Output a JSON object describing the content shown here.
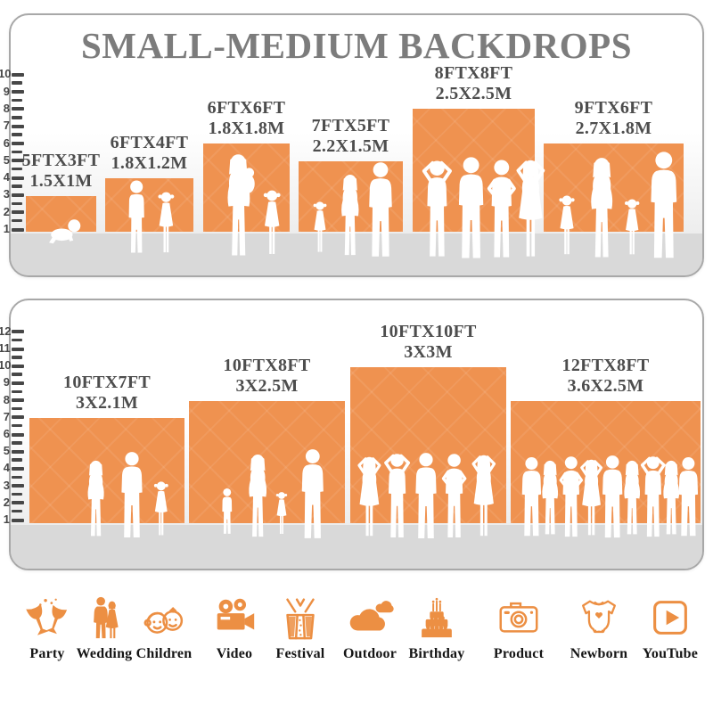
{
  "title": "SMALL-MEDIUM BACKDROPS",
  "colors": {
    "backdrop_orange": "#EF9250",
    "icon_orange": "#EC8F43",
    "title_gray": "#7C7C7C",
    "label_gray": "#4D4D4D",
    "floor_gray": "#D9D9D9",
    "tick_dark": "#474747",
    "panel_border": "#A8A8A8"
  },
  "panels": [
    {
      "ruler": {
        "min": 1,
        "max": 10
      },
      "backdrops": [
        {
          "ft_label": "5FTX3FT",
          "m_label": "1.5X1M",
          "width_ft": 5,
          "height_ft": 3
        },
        {
          "ft_label": "6FTX4FT",
          "m_label": "1.8X1.2M",
          "width_ft": 6,
          "height_ft": 4
        },
        {
          "ft_label": "6FTX6FT",
          "m_label": "1.8X1.8M",
          "width_ft": 6,
          "height_ft": 6
        },
        {
          "ft_label": "7FTX5FT",
          "m_label": "2.2X1.5M",
          "width_ft": 7,
          "height_ft": 5
        },
        {
          "ft_label": "8FTX8FT",
          "m_label": "2.5X2.5M",
          "width_ft": 8,
          "height_ft": 8
        },
        {
          "ft_label": "9FTX6FT",
          "m_label": "2.7X1.8M",
          "width_ft": 9,
          "height_ft": 6
        }
      ]
    },
    {
      "ruler": {
        "min": 1,
        "max": 12
      },
      "backdrops": [
        {
          "ft_label": "10FTX7FT",
          "m_label": "3X2.1M",
          "width_ft": 10,
          "height_ft": 7
        },
        {
          "ft_label": "10FTX8FT",
          "m_label": "3X2.5M",
          "width_ft": 10,
          "height_ft": 8
        },
        {
          "ft_label": "10FTX10FT",
          "m_label": "3X3M",
          "width_ft": 10,
          "height_ft": 10
        },
        {
          "ft_label": "12FTX8FT",
          "m_label": "3.6X2.5M",
          "width_ft": 12,
          "height_ft": 8
        }
      ]
    }
  ],
  "categories": [
    {
      "label": "Party",
      "icon": "party-icon"
    },
    {
      "label": "Wedding",
      "icon": "wedding-icon"
    },
    {
      "label": "Children",
      "icon": "children-icon"
    },
    {
      "label": "Video",
      "icon": "video-icon"
    },
    {
      "label": "Festival",
      "icon": "festival-icon"
    },
    {
      "label": "Outdoor",
      "icon": "outdoor-icon"
    },
    {
      "label": "Birthday",
      "icon": "birthday-icon"
    },
    {
      "label": "Product",
      "icon": "product-icon"
    },
    {
      "label": "Newborn",
      "icon": "newborn-icon"
    },
    {
      "label": "YouTube",
      "icon": "youtube-icon"
    }
  ]
}
